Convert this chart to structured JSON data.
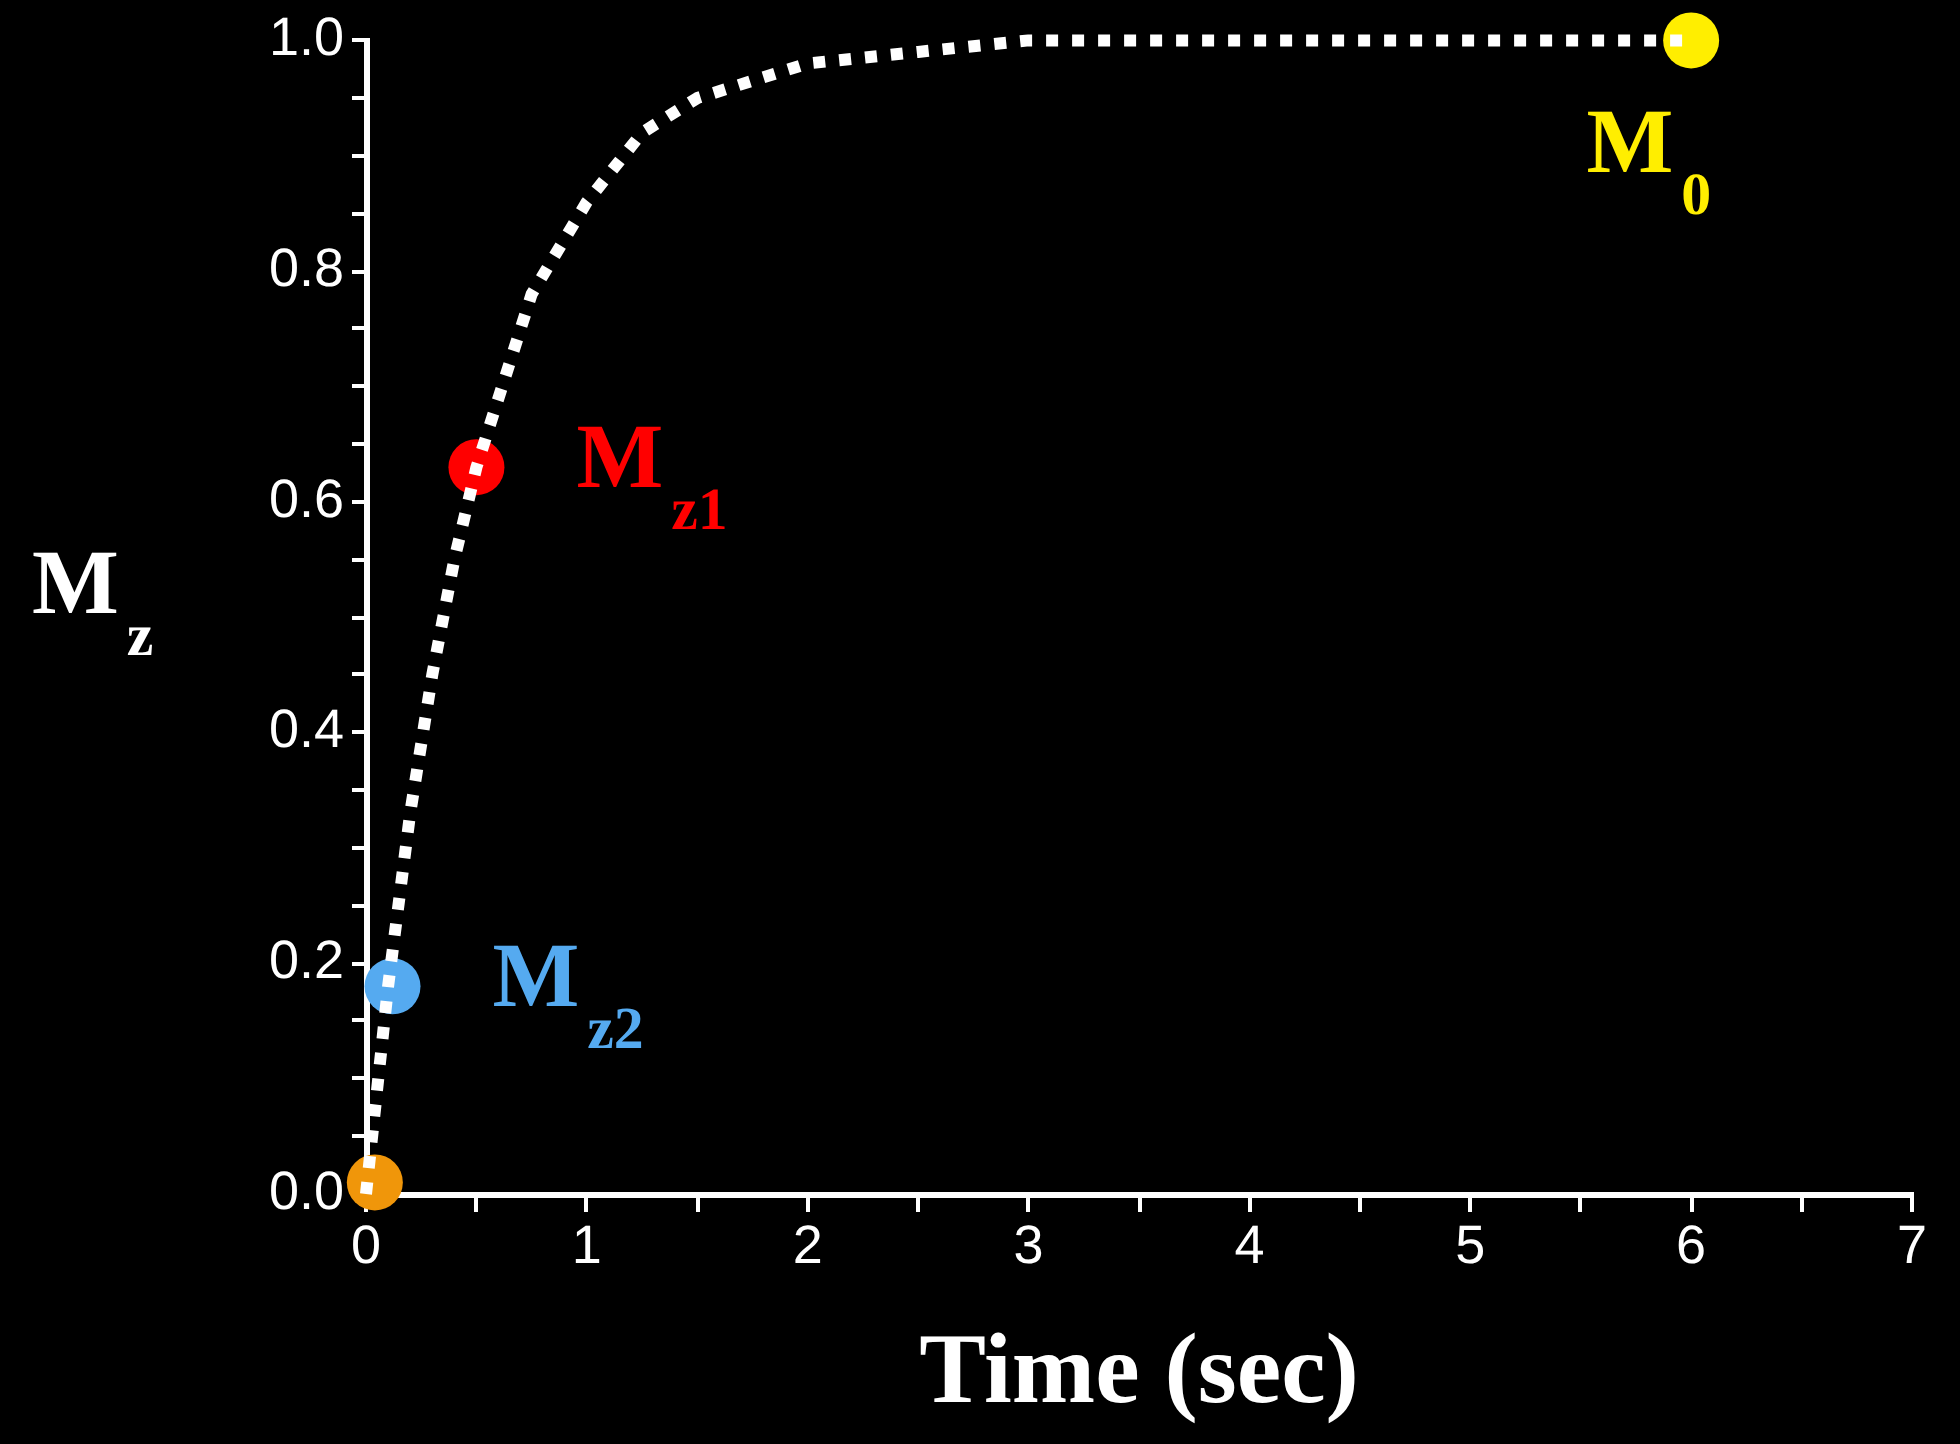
{
  "chart_data": {
    "type": "line",
    "xlabel": "Time (sec)",
    "ylabel": "M$_{z}$",
    "xlim": [
      0,
      7
    ],
    "ylim": [
      0,
      1
    ],
    "xticks": [
      0,
      {
        "value": 0.5,
        "label": null
      },
      1,
      {
        "value": 1.5,
        "label": null
      },
      2,
      {
        "value": 2.5,
        "label": null
      },
      3,
      {
        "value": 3.5,
        "label": null
      },
      4,
      {
        "value": 4.5,
        "label": null
      },
      5,
      {
        "value": 5.5,
        "label": null
      },
      6,
      {
        "value": 6.5,
        "label": null
      },
      7
    ],
    "yticks": [
      {
        "value": 0,
        "label": "0.0"
      },
      {
        "value": 0.05,
        "label": null
      },
      {
        "value": 0.1,
        "label": null
      },
      {
        "value": 0.15,
        "label": null
      },
      {
        "value": 0.2,
        "label": "0.2"
      },
      {
        "value": 0.25,
        "label": null
      },
      {
        "value": 0.3,
        "label": null
      },
      {
        "value": 0.35,
        "label": null
      },
      {
        "value": 0.4,
        "label": "0.4"
      },
      {
        "value": 0.45,
        "label": null
      },
      {
        "value": 0.5,
        "label": null
      },
      {
        "value": 0.55,
        "label": null
      },
      {
        "value": 0.6,
        "label": "0.6"
      },
      {
        "value": 0.65,
        "label": null
      },
      {
        "value": 0.7,
        "label": null
      },
      {
        "value": 0.75,
        "label": null
      },
      {
        "value": 0.8,
        "label": "0.8"
      },
      {
        "value": 0.85,
        "label": null
      },
      {
        "value": 0.9,
        "label": null
      },
      {
        "value": 0.95,
        "label": null
      },
      {
        "value": 1,
        "label": "1.0"
      }
    ],
    "grid": false,
    "legend": false,
    "series": [
      {
        "color": "#ffffff",
        "marker": "none",
        "line_style": "dotted",
        "x": [
          0,
          0.05,
          0.1,
          0.2,
          0.3,
          0.4,
          0.5,
          0.75,
          1,
          1.25,
          1.5,
          2,
          2.5,
          3,
          4,
          5,
          6
        ],
        "values": [
          0,
          0.09,
          0.18,
          0.33,
          0.45,
          0.55,
          0.63,
          0.78,
          0.86,
          0.92,
          0.95,
          0.98,
          0.99,
          1.0,
          1.0,
          1.0,
          1.0
        ]
      },
      {
        "type": "scatter",
        "color": "#f0960a",
        "marker": "circle",
        "x": [
          0.04
        ],
        "values": [
          0.01
        ]
      },
      {
        "type": "scatter",
        "name": "M$_{z2}$",
        "color": "#55aaf0",
        "marker": "circle",
        "x": [
          0.12
        ],
        "values": [
          0.18
        ]
      },
      {
        "type": "scatter",
        "name": "M$_{z1}$",
        "color": "#ff0000",
        "marker": "circle",
        "x": [
          0.5
        ],
        "values": [
          0.63
        ]
      },
      {
        "type": "scatter",
        "name": "M$_{0}$",
        "color": "#ffee00",
        "marker": "circle",
        "x": [
          6
        ],
        "values": [
          1.0
        ]
      }
    ]
  }
}
